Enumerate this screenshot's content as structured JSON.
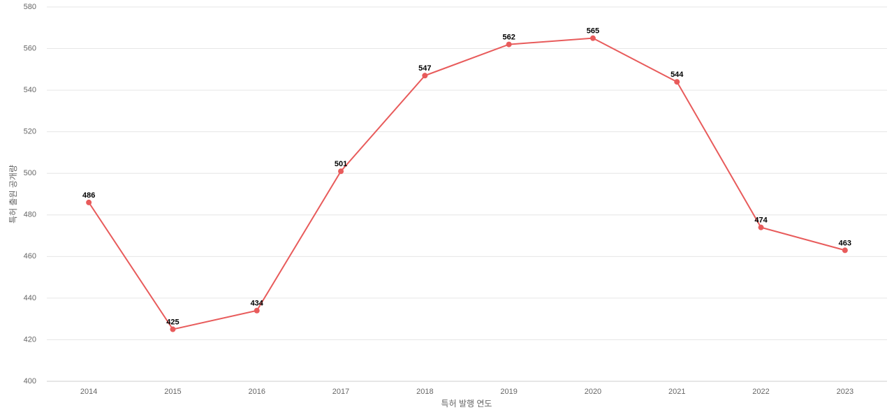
{
  "chart_data": {
    "type": "line",
    "x_label": "특허 발행 연도",
    "y_label": "특허 출원 공개량",
    "categories": [
      "2014",
      "2015",
      "2016",
      "2017",
      "2018",
      "2019",
      "2020",
      "2021",
      "2022",
      "2023"
    ],
    "values": [
      486,
      425,
      434,
      501,
      547,
      562,
      565,
      544,
      474,
      463
    ],
    "color": "#e85b5b",
    "ylim": [
      400,
      580
    ],
    "yticks": [
      400,
      420,
      440,
      460,
      480,
      500,
      520,
      540,
      560,
      580
    ],
    "grid": true
  }
}
